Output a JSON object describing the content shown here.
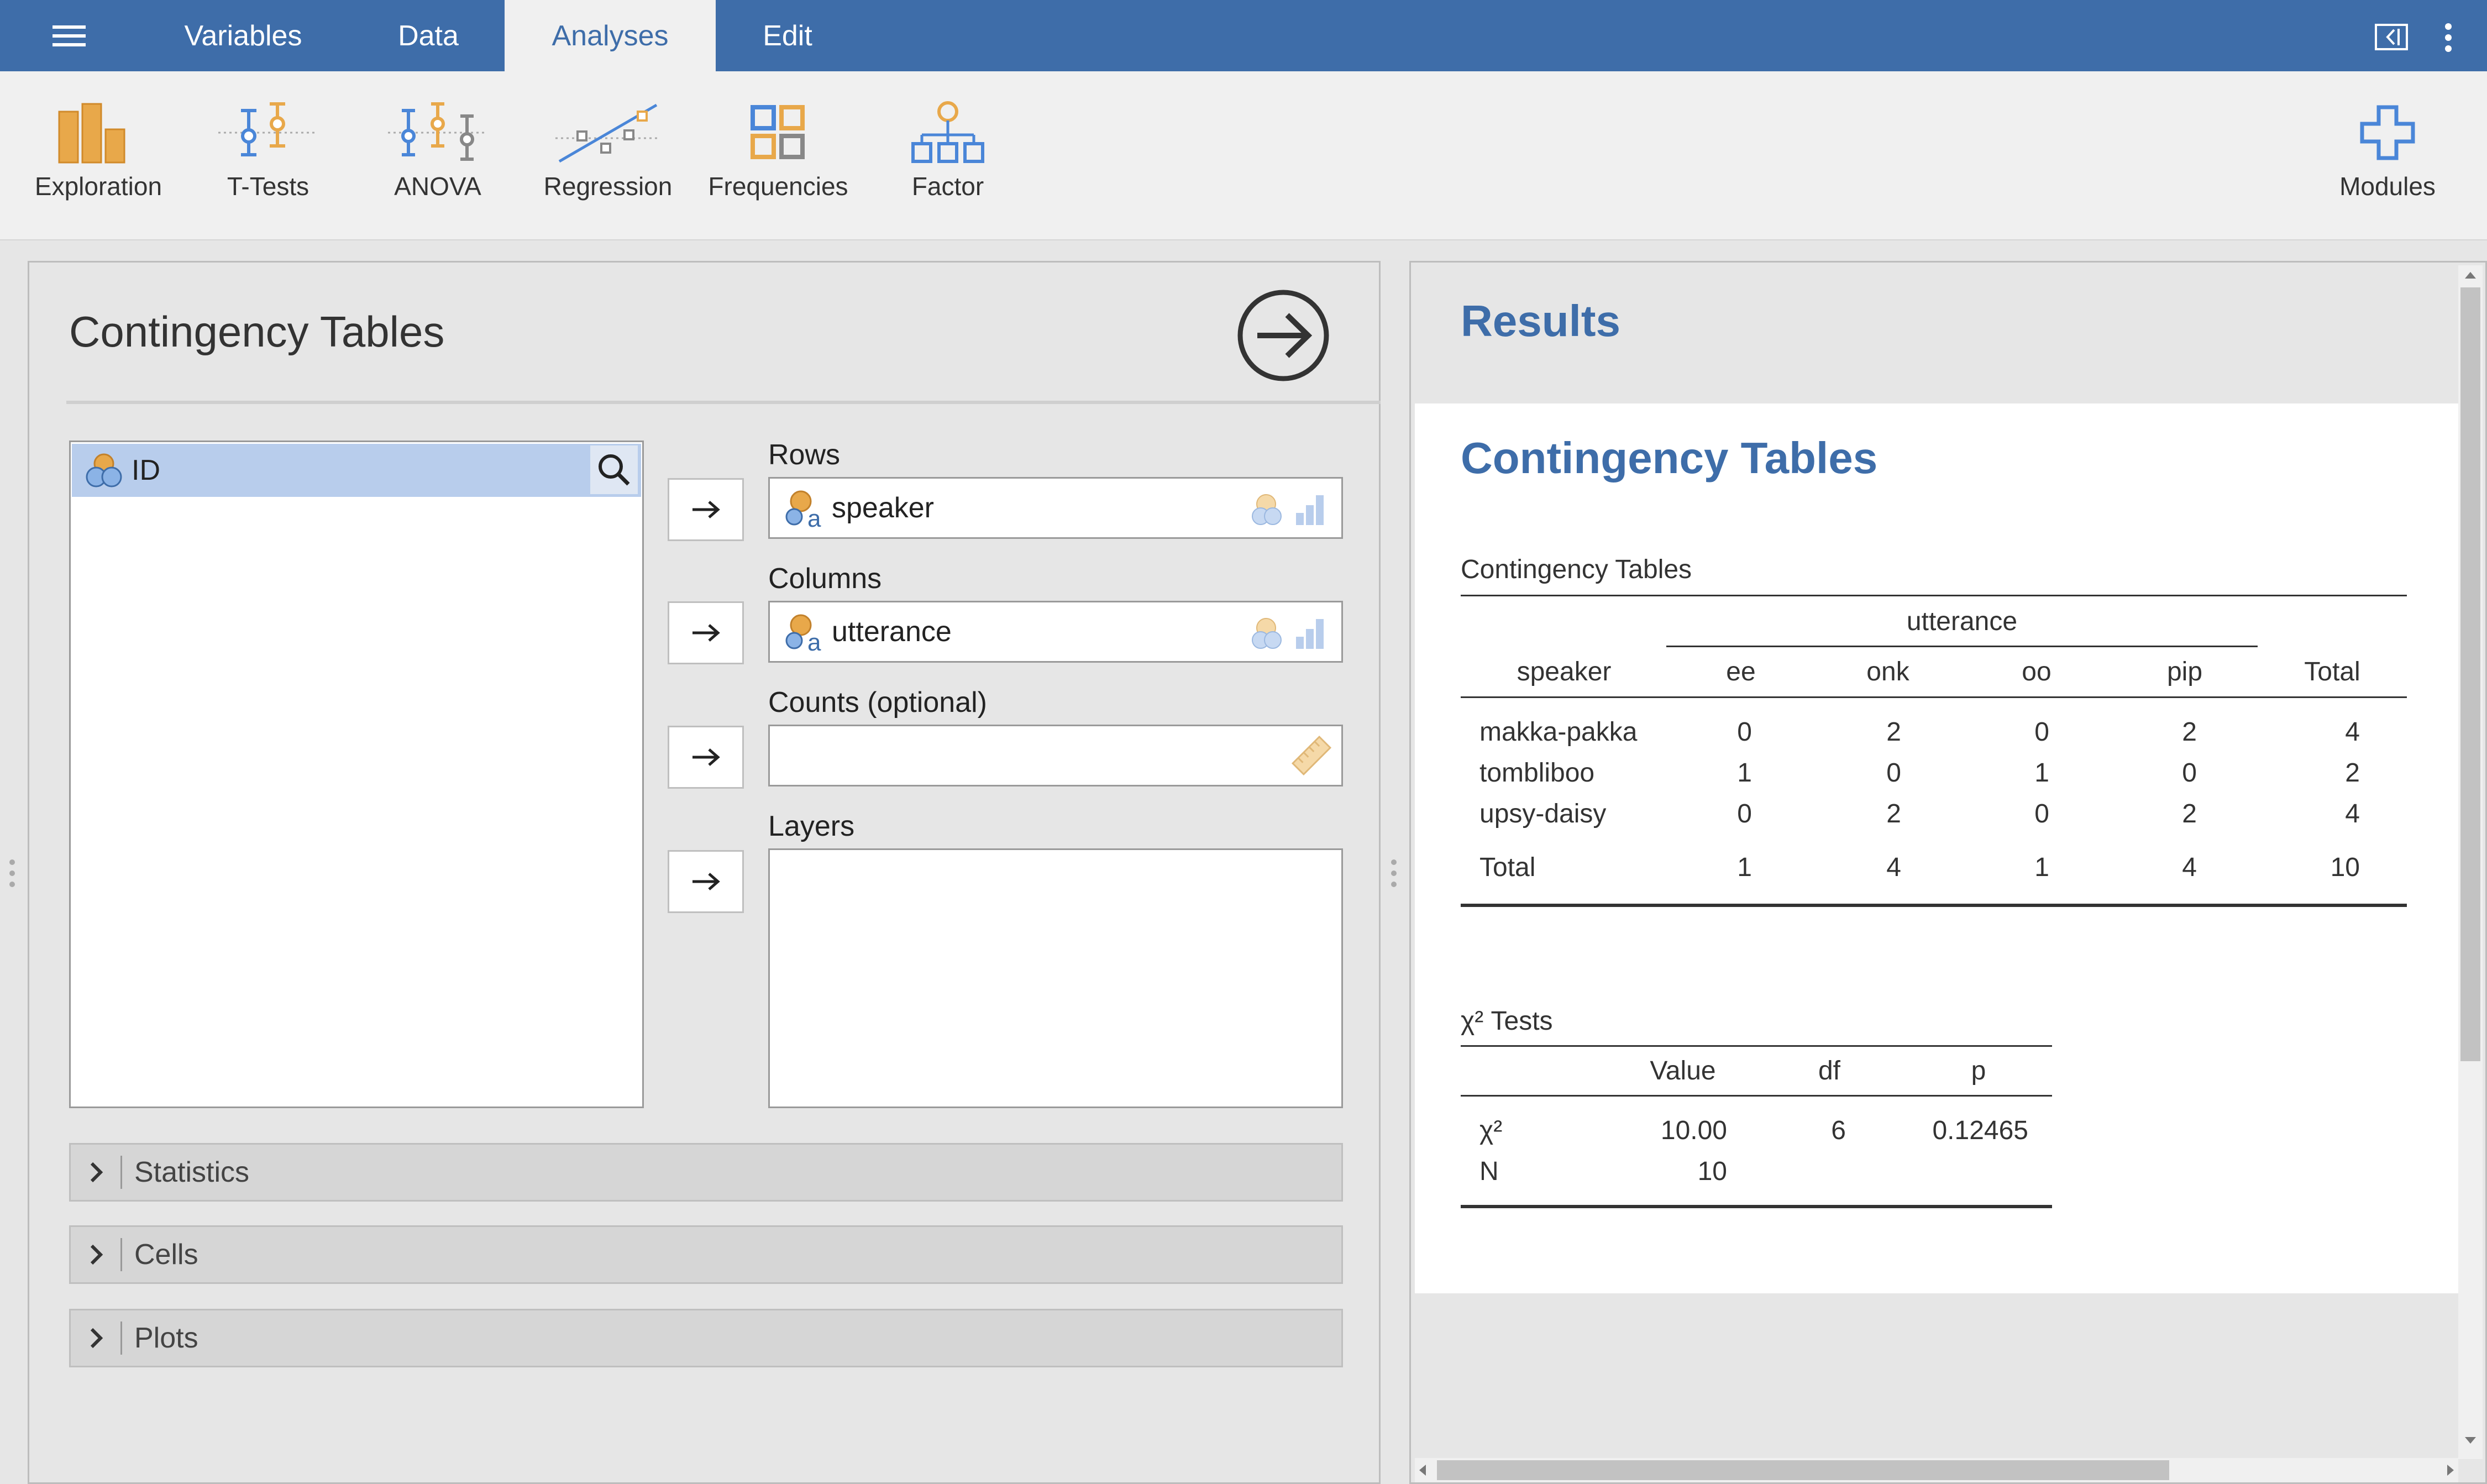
{
  "menu_tabs": [
    {
      "label": "Variables"
    },
    {
      "label": "Data"
    },
    {
      "label": "Analyses"
    },
    {
      "label": "Edit"
    }
  ],
  "active_tab": "Analyses",
  "ribbon": {
    "items": [
      {
        "label": "Exploration",
        "icon": "exploration-icon"
      },
      {
        "label": "T-Tests",
        "icon": "t-tests-icon"
      },
      {
        "label": "ANOVA",
        "icon": "anova-icon"
      },
      {
        "label": "Regression",
        "icon": "regression-icon"
      },
      {
        "label": "Frequencies",
        "icon": "frequencies-icon"
      },
      {
        "label": "Factor",
        "icon": "factor-icon"
      }
    ],
    "modules_label": "Modules"
  },
  "analysis": {
    "title": "Contingency Tables",
    "available_variables": [
      {
        "name": "ID"
      }
    ],
    "rows_label": "Rows",
    "rows_value": "speaker",
    "columns_label": "Columns",
    "columns_value": "utterance",
    "counts_label": "Counts (optional)",
    "layers_label": "Layers",
    "sections": [
      {
        "label": "Statistics"
      },
      {
        "label": "Cells"
      },
      {
        "label": "Plots"
      }
    ]
  },
  "results": {
    "heading": "Results",
    "title": "Contingency Tables",
    "contingency": {
      "caption": "Contingency Tables",
      "group_header": "utterance",
      "row_header": "speaker",
      "columns": [
        "ee",
        "onk",
        "oo",
        "pip",
        "Total"
      ],
      "rows": [
        {
          "label": "makka-pakka",
          "values": [
            "0",
            "2",
            "0",
            "2",
            "4"
          ]
        },
        {
          "label": "tombliboo",
          "values": [
            "1",
            "0",
            "1",
            "0",
            "2"
          ]
        },
        {
          "label": "upsy-daisy",
          "values": [
            "0",
            "2",
            "0",
            "2",
            "4"
          ]
        },
        {
          "label": "Total",
          "values": [
            "1",
            "4",
            "1",
            "4",
            "10"
          ]
        }
      ]
    },
    "chisq": {
      "caption": "χ² Tests",
      "columns": [
        "Value",
        "df",
        "p"
      ],
      "rows": [
        {
          "label": "χ²",
          "values": [
            "10.00",
            "6",
            "0.12465"
          ]
        },
        {
          "label": "N",
          "values": [
            "10",
            "",
            ""
          ]
        }
      ]
    }
  },
  "colors": {
    "accent": "#3e6da9",
    "ribbon_orange": "#e8a84a",
    "ribbon_blue": "#4a86d8",
    "selection": "#b8cdec"
  }
}
